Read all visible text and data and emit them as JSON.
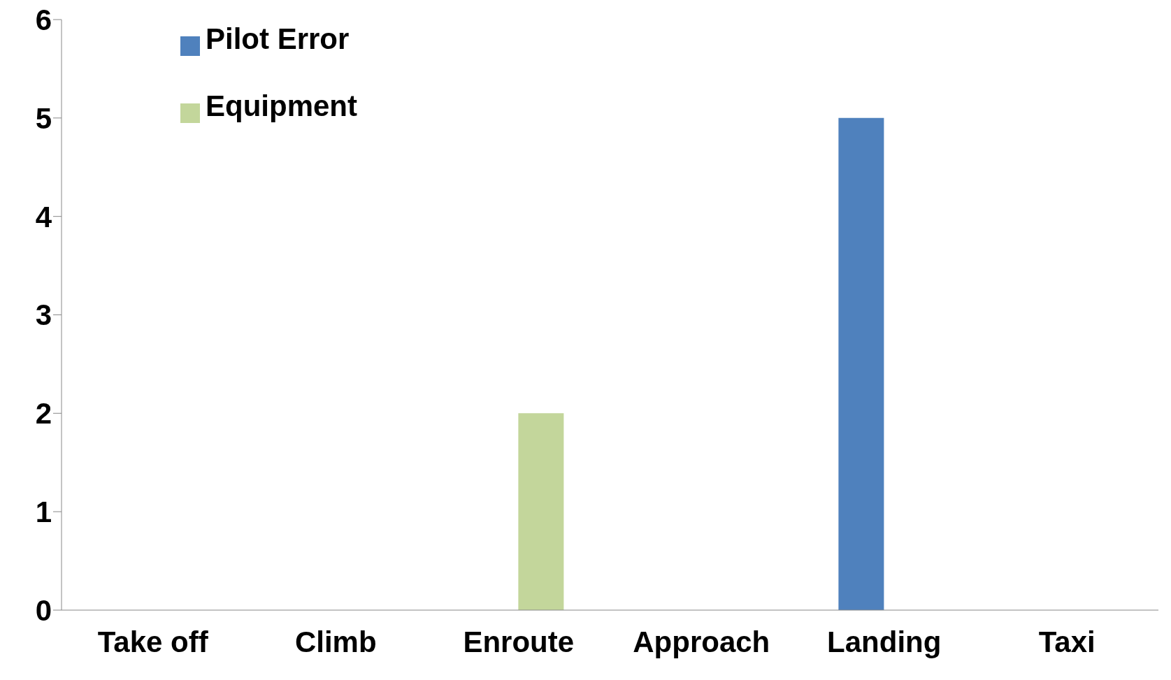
{
  "chart_data": {
    "type": "bar",
    "categories": [
      "Take off",
      "Climb",
      "Enroute",
      "Approach",
      "Landing",
      "Taxi"
    ],
    "series": [
      {
        "name": "Pilot Error",
        "color": "#4f81bd",
        "values": [
          0,
          0,
          0,
          0,
          5,
          0
        ]
      },
      {
        "name": "Equipment",
        "color": "#c3d69b",
        "values": [
          0,
          0,
          2,
          0,
          0,
          0
        ]
      }
    ],
    "ylim": [
      0,
      6
    ],
    "yticks": [
      0,
      1,
      2,
      3,
      4,
      5,
      6
    ],
    "legend": "top left"
  }
}
